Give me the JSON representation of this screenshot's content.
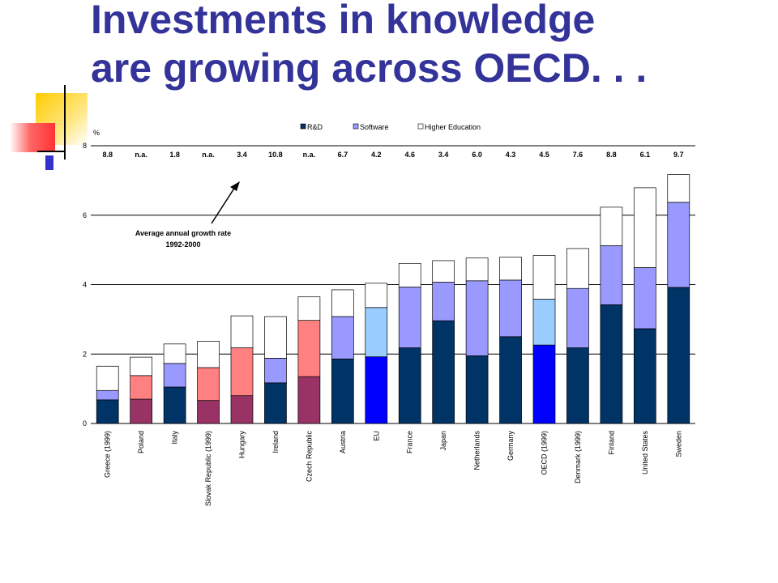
{
  "slide": {
    "title_line1": "Investments in knowledge",
    "title_line2": "are growing across OECD. . ."
  },
  "chart_data": {
    "type": "bar",
    "stacked": true,
    "ylabel": "%",
    "ylim": [
      0,
      8
    ],
    "yticks": [
      0,
      2,
      4,
      6,
      8
    ],
    "grid": true,
    "legend_position": "top",
    "legend": [
      "R&D",
      "Software",
      "Higher Education"
    ],
    "annotation": {
      "line1": "Average annual growth rate",
      "line2": "1992-2000"
    },
    "categories": [
      "Greece (1999)",
      "Poland",
      "Italy",
      "Slovak Republic (1999)",
      "Hungary",
      "Ireland",
      "Czech Republic",
      "Austria",
      "EU",
      "France",
      "Japan",
      "Netherlands",
      "Germany",
      "OECD (1999)",
      "Denmark (1999)",
      "Finland",
      "United States",
      "Sweden"
    ],
    "growth_rates": [
      "8.8",
      "n.a.",
      "1.8",
      "n.a.",
      "3.4",
      "10.8",
      "n.a.",
      "6.7",
      "4.2",
      "4.6",
      "3.4",
      "6.0",
      "4.3",
      "4.5",
      "7.6",
      "8.8",
      "6.1",
      "9.7"
    ],
    "series": [
      {
        "name": "R&D",
        "values": [
          0.68,
          0.7,
          1.05,
          0.66,
          0.8,
          1.17,
          1.35,
          1.86,
          1.92,
          2.18,
          2.96,
          1.95,
          2.5,
          2.26,
          2.18,
          3.42,
          2.73,
          3.92
        ]
      },
      {
        "name": "Software",
        "values": [
          0.27,
          0.68,
          0.68,
          0.95,
          1.38,
          0.71,
          1.62,
          1.22,
          1.42,
          1.75,
          1.11,
          2.16,
          1.63,
          1.32,
          1.71,
          1.7,
          1.76,
          2.45
        ]
      },
      {
        "name": "Higher Education",
        "values": [
          0.7,
          0.53,
          0.56,
          0.76,
          0.92,
          1.2,
          0.68,
          0.77,
          0.7,
          0.68,
          0.62,
          0.66,
          0.66,
          1.26,
          1.15,
          1.11,
          2.3,
          0.8
        ]
      }
    ],
    "colors": {
      "rd_default": "#003366",
      "software_default": "#9999ff",
      "higher_ed": "#ffffff",
      "rd_highlight": "#993366",
      "software_highlight": "#ff8080",
      "rd_aggregate": "#0000ff",
      "software_aggregate": "#99ccff"
    },
    "highlight_categories": [
      "Poland",
      "Slovak Republic (1999)",
      "Hungary",
      "Czech Republic"
    ],
    "aggregate_categories": [
      "EU",
      "OECD (1999)"
    ]
  }
}
